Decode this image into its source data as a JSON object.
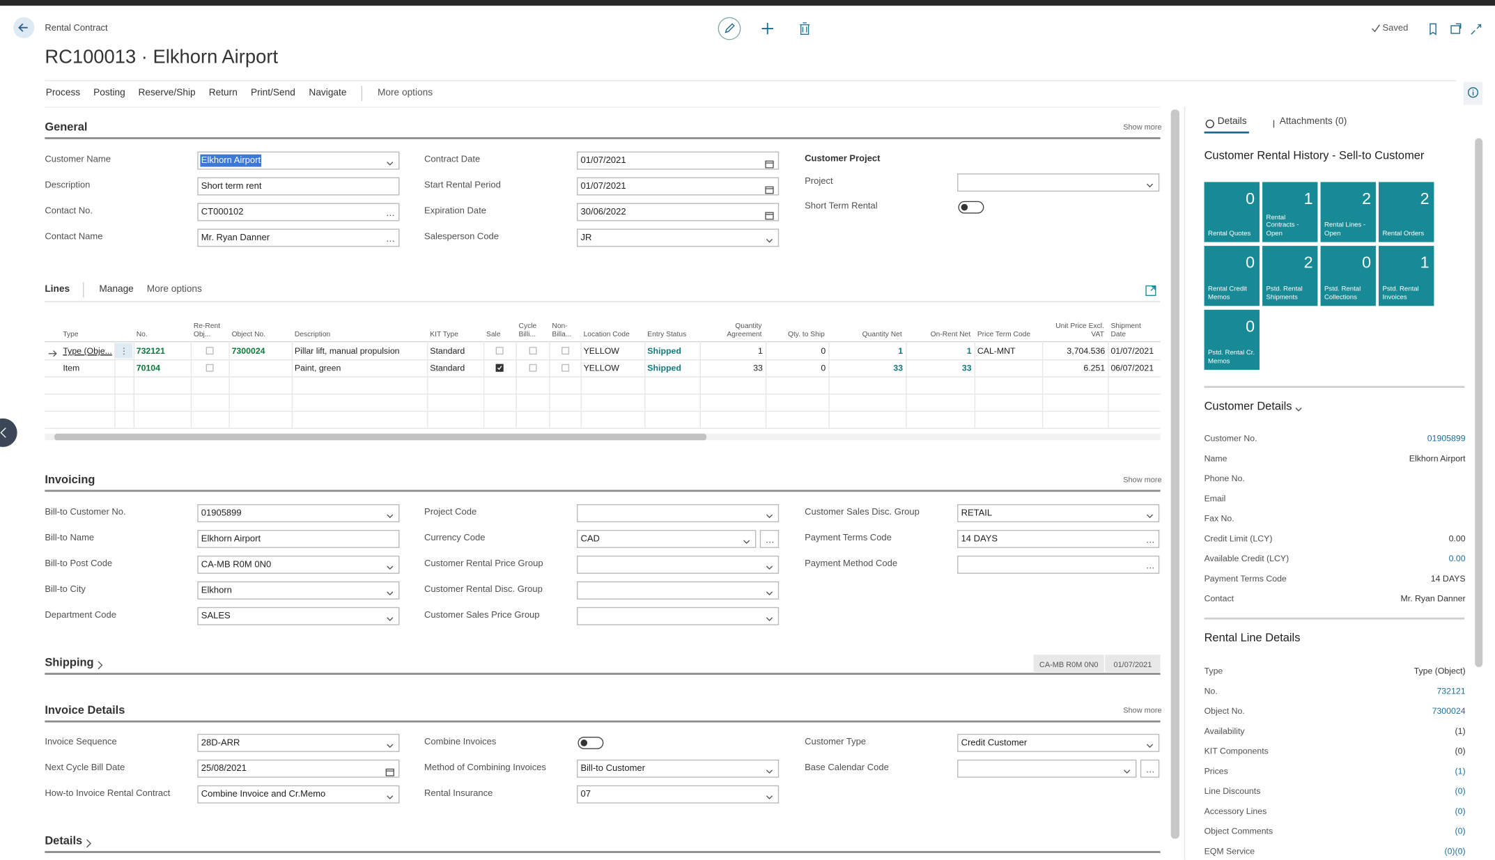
{
  "header": {
    "breadcrumb": "Rental Contract",
    "title": "RC100013 · Elkhorn Airport",
    "status": "Saved"
  },
  "actions": {
    "items": [
      "Process",
      "Posting",
      "Reserve/Ship",
      "Return",
      "Print/Send",
      "Navigate"
    ],
    "more": "More options"
  },
  "general": {
    "title": "General",
    "show_more": "Show more",
    "columns": [
      {
        "fields": [
          {
            "label": "Customer Name",
            "value": "Elkhorn Airport",
            "control": "dropdown",
            "selected": true
          },
          {
            "label": "Description",
            "value": "Short term rent",
            "control": "text"
          },
          {
            "label": "Contact No.",
            "value": "CT000102",
            "control": "lookup"
          },
          {
            "label": "Contact Name",
            "value": "Mr. Ryan Danner",
            "control": "lookup"
          }
        ]
      },
      {
        "fields": [
          {
            "label": "Contract Date",
            "value": "01/07/2021",
            "control": "date"
          },
          {
            "label": "Start Rental Period",
            "value": "01/07/2021",
            "control": "date"
          },
          {
            "label": "Expiration Date",
            "value": "30/06/2022",
            "control": "date"
          },
          {
            "label": "Salesperson Code",
            "value": "JR",
            "control": "dropdown"
          }
        ]
      },
      {
        "heading": "Customer Project",
        "fields": [
          {
            "label": "Project",
            "control": "dropdown"
          },
          {
            "label": "Short Term Rental",
            "control": "toggle",
            "on": false
          }
        ]
      }
    ]
  },
  "lines": {
    "title": "Lines",
    "actions": [
      "Manage",
      "More options"
    ],
    "columns": [
      "Type",
      "No.",
      "Re-Rent Obj...",
      "Object No.",
      "Description",
      "KIT Type",
      "Sale",
      "Cycle Billi...",
      "Non-Billa...",
      "Location Code",
      "Entry Status",
      "Quantity Agreement",
      "Qty. to Ship",
      "Quantity Net",
      "On-Rent Net",
      "Price Term Code",
      "Unit Price Excl. VAT",
      "Shipment Date"
    ],
    "rows": [
      [
        "Type (Obje...",
        "732121",
        false,
        "7300024",
        "Pillar lift, manual propulsion",
        "Standard",
        false,
        false,
        false,
        "YELLOW",
        "Shipped",
        1,
        0,
        1,
        1,
        "CAL-MNT",
        "3,704.536",
        "01/07/2021"
      ],
      [
        "Item",
        "70104",
        false,
        null,
        "Paint, green",
        "Standard",
        true,
        false,
        false,
        "YELLOW",
        "Shipped",
        33,
        0,
        33,
        33,
        null,
        "6.251",
        "06/07/2021"
      ]
    ]
  },
  "invoicing": {
    "title": "Invoicing",
    "show_more": "Show more",
    "columns": [
      {
        "fields": [
          {
            "label": "Bill-to Customer No.",
            "value": "01905899",
            "control": "dropdown"
          },
          {
            "label": "Bill-to Name",
            "value": "Elkhorn Airport",
            "control": "text"
          },
          {
            "label": "Bill-to Post Code",
            "value": "CA-MB R0M 0N0",
            "control": "dropdown"
          },
          {
            "label": "Bill-to City",
            "value": "Elkhorn",
            "control": "dropdown"
          },
          {
            "label": "Department Code",
            "value": "SALES",
            "control": "dropdown"
          }
        ]
      },
      {
        "fields": [
          {
            "label": "Project Code",
            "control": "dropdown"
          },
          {
            "label": "Currency Code",
            "value": "CAD",
            "control": "dropdown-lookup"
          },
          {
            "label": "Customer Rental Price Group",
            "control": "dropdown"
          },
          {
            "label": "Customer Rental Disc. Group",
            "control": "dropdown"
          },
          {
            "label": "Customer Sales Price Group",
            "control": "dropdown"
          }
        ]
      },
      {
        "fields": [
          {
            "label": "Customer Sales Disc. Group",
            "value": "RETAIL",
            "control": "dropdown"
          },
          {
            "label": "Payment Terms Code",
            "value": "14 DAYS",
            "control": "lookup"
          },
          {
            "label": "Payment Method Code",
            "control": "lookup"
          }
        ]
      }
    ]
  },
  "shipping": {
    "title": "Shipping",
    "badges": [
      "CA-MB R0M 0N0",
      "01/07/2021"
    ]
  },
  "invoice_details": {
    "title": "Invoice Details",
    "show_more": "Show more",
    "columns": [
      {
        "fields": [
          {
            "label": "Invoice Sequence",
            "value": "28D-ARR",
            "control": "dropdown"
          },
          {
            "label": "Next Cycle Bill Date",
            "value": "25/08/2021",
            "control": "date"
          },
          {
            "label": "How-to Invoice Rental Contract",
            "value": "Combine Invoice and Cr.Memo",
            "control": "dropdown"
          }
        ]
      },
      {
        "fields": [
          {
            "label": "Combine Invoices",
            "control": "toggle",
            "on": false
          },
          {
            "label": "Method of Combining Invoices",
            "value": "Bill-to Customer",
            "control": "dropdown"
          },
          {
            "label": "Rental Insurance",
            "value": "07",
            "control": "dropdown"
          }
        ]
      },
      {
        "fields": [
          {
            "label": "Customer Type",
            "value": "Credit Customer",
            "control": "dropdown"
          },
          {
            "label": "Base Calendar Code",
            "control": "dropdown-lookup"
          }
        ]
      }
    ]
  },
  "details": {
    "title": "Details"
  },
  "factbox": {
    "tabs": [
      "Details",
      "Attachments (0)"
    ],
    "history": {
      "title": "Customer Rental History - Sell-to Customer",
      "tiles": [
        {
          "value": 0,
          "label": "Rental Quotes"
        },
        {
          "value": 1,
          "label": "Rental Contracts - Open"
        },
        {
          "value": 2,
          "label": "Rental Lines - Open"
        },
        {
          "value": 2,
          "label": "Rental Orders"
        },
        {
          "value": 0,
          "label": "Rental Credit Memos"
        },
        {
          "value": 2,
          "label": "Pstd. Rental Shipments"
        },
        {
          "value": 0,
          "label": "Pstd. Rental Collections"
        },
        {
          "value": 1,
          "label": "Pstd. Rental Invoices"
        },
        {
          "value": 0,
          "label": "Pstd. Rental Cr. Memos"
        }
      ]
    },
    "customer_details": {
      "title": "Customer Details",
      "rows": [
        {
          "label": "Customer No.",
          "value": "01905899",
          "link": true
        },
        {
          "label": "Name",
          "value": "Elkhorn Airport"
        },
        {
          "label": "Phone No."
        },
        {
          "label": "Email"
        },
        {
          "label": "Fax No."
        },
        {
          "label": "Credit Limit (LCY)",
          "value": "0.00"
        },
        {
          "label": "Available Credit (LCY)",
          "value": "0.00",
          "link": true
        },
        {
          "label": "Payment Terms Code",
          "value": "14 DAYS"
        },
        {
          "label": "Contact",
          "value": "Mr. Ryan Danner"
        }
      ]
    },
    "rental_line_details": {
      "title": "Rental Line Details",
      "rows": [
        {
          "label": "Type",
          "value": "Type (Object)"
        },
        {
          "label": "No.",
          "value": "732121",
          "link": true
        },
        {
          "label": "Object No.",
          "value": "7300024",
          "link": true
        },
        {
          "label": "Availability",
          "value": "(1)"
        },
        {
          "label": "KIT Components",
          "value": "(0)"
        },
        {
          "label": "Prices",
          "value": "(1)",
          "link": true
        },
        {
          "label": "Line Discounts",
          "value": "(0)",
          "link": true
        },
        {
          "label": "Accessory Lines",
          "value": "(0)",
          "link": true
        },
        {
          "label": "Object Comments",
          "value": "(0)",
          "link": true
        },
        {
          "label": "EQM Service",
          "value": "(0)(0)",
          "link": true
        }
      ]
    }
  }
}
